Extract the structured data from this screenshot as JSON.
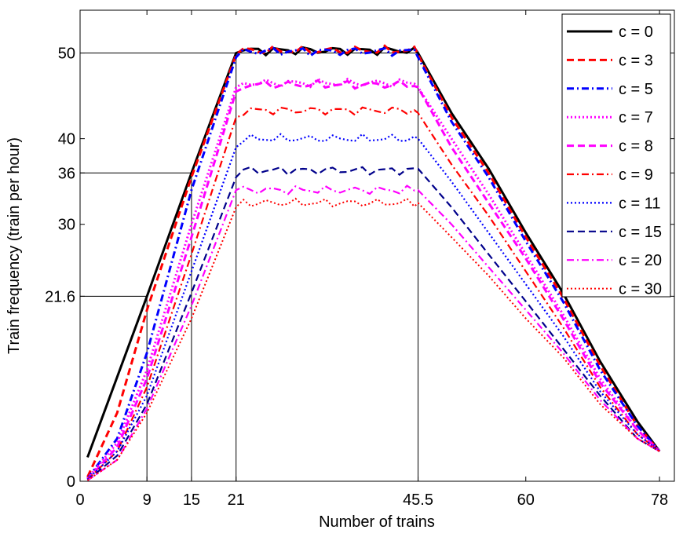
{
  "chart_data": {
    "type": "line",
    "title": "",
    "xlabel": "Number of trains",
    "ylabel": "Train frequency (train per hour)",
    "xlim": [
      0,
      80
    ],
    "ylim": [
      0,
      55
    ],
    "xticks": [
      {
        "value": 0,
        "label": "0"
      },
      {
        "value": 9,
        "label": "9"
      },
      {
        "value": 15,
        "label": "15"
      },
      {
        "value": 21,
        "label": "21"
      },
      {
        "value": 45.5,
        "label": "45.5"
      },
      {
        "value": 60,
        "label": "60"
      },
      {
        "value": 78,
        "label": "78"
      }
    ],
    "yticks": [
      {
        "value": 0,
        "label": "0"
      },
      {
        "value": 21.6,
        "label": "21.6"
      },
      {
        "value": 30,
        "label": "30"
      },
      {
        "value": 36,
        "label": "36"
      },
      {
        "value": 40,
        "label": "40"
      },
      {
        "value": 50,
        "label": "50"
      }
    ],
    "reference_lines": [
      {
        "x": 9,
        "y": 21.6
      },
      {
        "x": 15,
        "y": 36
      },
      {
        "x": 21,
        "y": 50
      },
      {
        "x": 45.5,
        "y": 50
      }
    ],
    "legend_position": "top-right",
    "series": [
      {
        "name": "c = 0",
        "color": "#000000",
        "dash": "solid",
        "width": 3,
        "plateau": 50.3,
        "x": [
          1,
          9,
          15,
          21,
          45.5,
          50,
          55,
          60,
          65,
          70,
          75,
          78
        ],
        "y": [
          2.8,
          21.6,
          36,
          50,
          50,
          43,
          36.5,
          29,
          22,
          14,
          7,
          3.5
        ]
      },
      {
        "name": "c = 3",
        "color": "#ff0000",
        "dash": "dash",
        "width": 3,
        "plateau": 50.3,
        "x": [
          1,
          5,
          9,
          15,
          21,
          45.5,
          50,
          55,
          60,
          65,
          70,
          75,
          78
        ],
        "y": [
          0.5,
          8,
          20,
          35.5,
          49.8,
          49.8,
          42.5,
          36,
          28.5,
          21.5,
          13.5,
          6.5,
          3.5
        ]
      },
      {
        "name": "c = 5",
        "color": "#0000ff",
        "dash": "dashdot",
        "width": 3,
        "plateau": 50.2,
        "x": [
          1,
          5,
          9,
          15,
          21,
          45.5,
          50,
          55,
          60,
          65,
          70,
          75,
          78
        ],
        "y": [
          0.3,
          5,
          15,
          34,
          49.5,
          49.5,
          42,
          35.5,
          28,
          21,
          13,
          6.5,
          3.5
        ]
      },
      {
        "name": "c = 7",
        "color": "#ff00ff",
        "dash": "dot",
        "width": 3,
        "plateau": 46.5,
        "x": [
          1,
          5,
          9,
          15,
          21,
          45.5,
          50,
          55,
          60,
          65,
          70,
          75,
          78
        ],
        "y": [
          0.3,
          4.5,
          13,
          30,
          46,
          46,
          40,
          33.5,
          26.5,
          19.5,
          12,
          6,
          3.5
        ]
      },
      {
        "name": "c = 8",
        "color": "#ff00ff",
        "dash": "dash",
        "width": 3,
        "plateau": 46.3,
        "x": [
          1,
          5,
          9,
          15,
          21,
          45.5,
          50,
          55,
          60,
          65,
          70,
          75,
          78
        ],
        "y": [
          0.2,
          4,
          12,
          28.5,
          45.5,
          46,
          39,
          32.5,
          26,
          19,
          11.5,
          6,
          3.5
        ]
      },
      {
        "name": "c = 9",
        "color": "#ff0000",
        "dash": "dashdot",
        "width": 2.2,
        "plateau": 43.3,
        "x": [
          1,
          5,
          9,
          15,
          21,
          45.5,
          50,
          55,
          60,
          65,
          70,
          75,
          78
        ],
        "y": [
          0.2,
          3.5,
          11,
          26.5,
          42.5,
          43,
          37,
          31,
          24.5,
          18,
          11,
          5.5,
          3.5
        ]
      },
      {
        "name": "c = 11",
        "color": "#0000ff",
        "dash": "dot",
        "width": 2.2,
        "plateau": 40,
        "x": [
          1,
          5,
          9,
          15,
          21,
          45.5,
          50,
          55,
          60,
          65,
          70,
          75,
          78
        ],
        "y": [
          0.2,
          3.5,
          10,
          24.5,
          39,
          40,
          35,
          29,
          23,
          17,
          10.5,
          5.5,
          3.5
        ]
      },
      {
        "name": "c = 15",
        "color": "#00008b",
        "dash": "dash",
        "width": 2.2,
        "plateau": 36.3,
        "x": [
          1,
          5,
          9,
          15,
          21,
          45.5,
          50,
          55,
          60,
          65,
          70,
          75,
          78
        ],
        "y": [
          0.1,
          3,
          9,
          22,
          35.5,
          36.5,
          32,
          26.5,
          21,
          15.5,
          10,
          5,
          3.5
        ]
      },
      {
        "name": "c = 20",
        "color": "#ff00ff",
        "dash": "dashdot",
        "width": 2.2,
        "plateau": 34,
        "x": [
          1,
          5,
          9,
          15,
          21,
          45.5,
          50,
          55,
          60,
          65,
          70,
          75,
          78
        ],
        "y": [
          0.1,
          2.5,
          8.5,
          20.5,
          34,
          34,
          30,
          25,
          20,
          15,
          9.5,
          5,
          3.5
        ]
      },
      {
        "name": "c = 30",
        "color": "#ff0000",
        "dash": "dot",
        "width": 2,
        "plateau": 32.5,
        "x": [
          1,
          5,
          9,
          15,
          21,
          45.5,
          50,
          55,
          60,
          65,
          70,
          75,
          78
        ],
        "y": [
          0.1,
          2.5,
          8,
          19,
          32,
          32.5,
          28.5,
          24,
          19,
          14.5,
          9,
          5,
          3.5
        ]
      }
    ]
  }
}
